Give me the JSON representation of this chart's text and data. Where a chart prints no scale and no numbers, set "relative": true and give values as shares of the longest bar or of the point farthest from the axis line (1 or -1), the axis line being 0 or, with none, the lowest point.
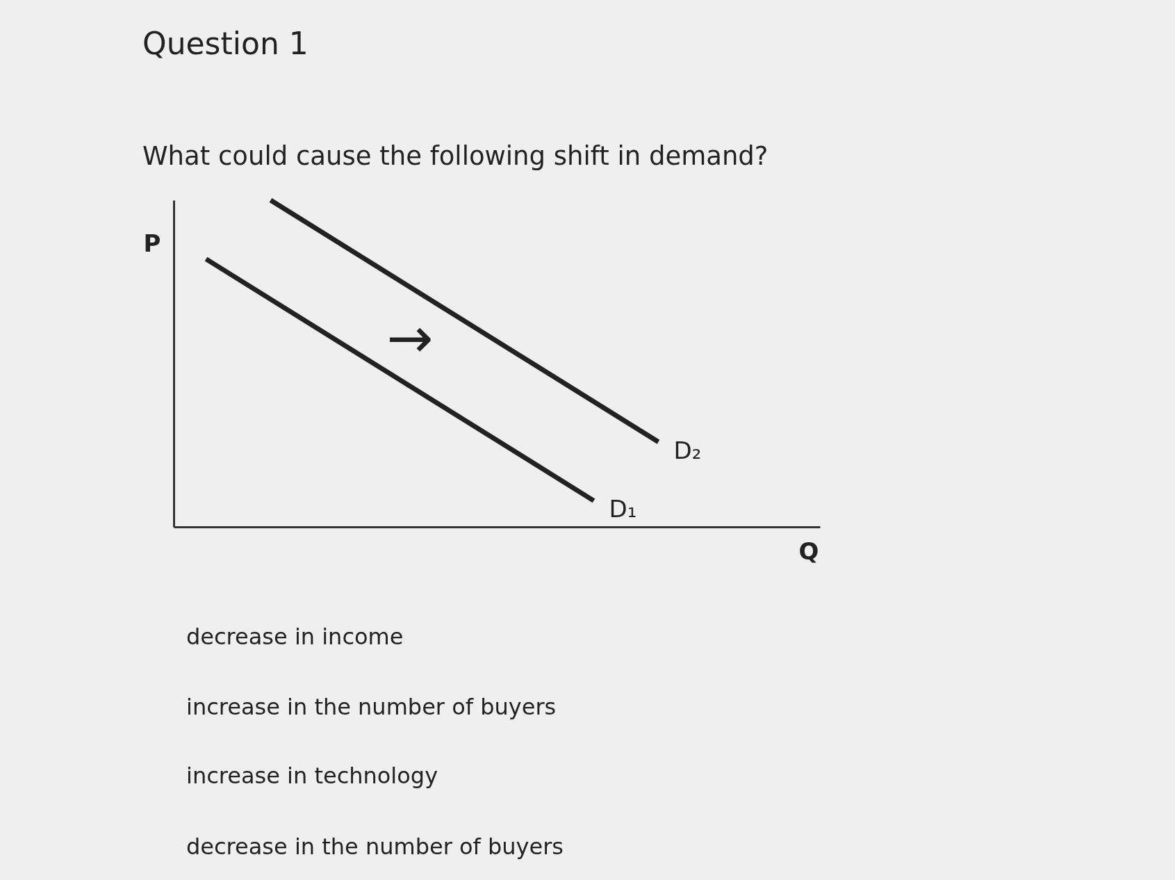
{
  "chart_data": {
    "type": "line",
    "title": "Question 1",
    "subtitle": "What could cause the following shift in demand?",
    "xlabel": "Q",
    "ylabel": "P",
    "relative": true,
    "grid": false,
    "legend": false,
    "tick_labels": false,
    "categories": [
      null,
      null,
      null,
      null,
      null,
      null,
      null,
      null,
      null,
      null,
      null,
      null,
      null,
      null,
      null,
      null,
      null,
      null,
      null,
      null,
      null
    ],
    "series": [
      {
        "name": "D₁",
        "color": "#222222",
        "values": [
          null,
          0.82,
          null,
          null,
          null,
          null,
          null,
          null,
          null,
          null,
          null,
          null,
          null,
          0.08,
          null,
          null,
          null,
          null,
          null,
          null,
          null
        ]
      },
      {
        "name": "D₂",
        "color": "#222222",
        "values": [
          null,
          null,
          null,
          1,
          null,
          null,
          null,
          null,
          null,
          null,
          null,
          null,
          null,
          null,
          null,
          0.26,
          null,
          null,
          null,
          null,
          null
        ]
      }
    ],
    "annotations": [
      "→",
      "decrease in income",
      "increase in the number of buyers",
      "increase in technology",
      "decrease in the number of buyers"
    ]
  }
}
